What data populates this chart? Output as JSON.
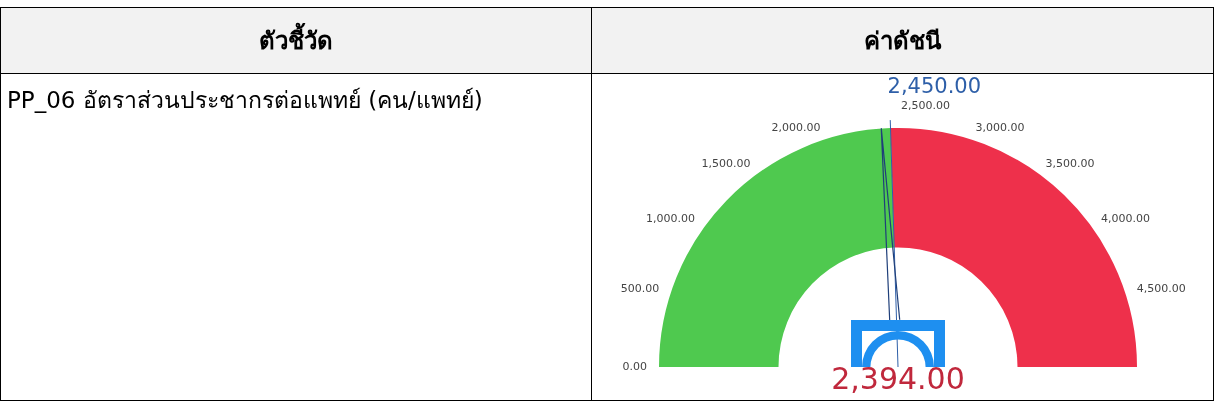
{
  "chart_data": {
    "type": "donut",
    "annotations": [
      "ตัวชี้วัด",
      "ค่าดัชนี",
      "0.00",
      "500.00",
      "1,000.00",
      "1,500.00",
      "2,000.00",
      "2,500.00",
      "3,000.00",
      "3,500.00",
      "4,000.00",
      "4,500.00",
      "2,450.00",
      "2,394.00"
    ],
    "title": "PP_06 อัตราส่วนประชากรต่อแพทย์ (คน/แพทย์)",
    "categories": [
      null,
      null
    ],
    "values": [
      49,
      51
    ],
    "colors": [
      "#4fc94f",
      "#ee304b"
    ]
  }
}
